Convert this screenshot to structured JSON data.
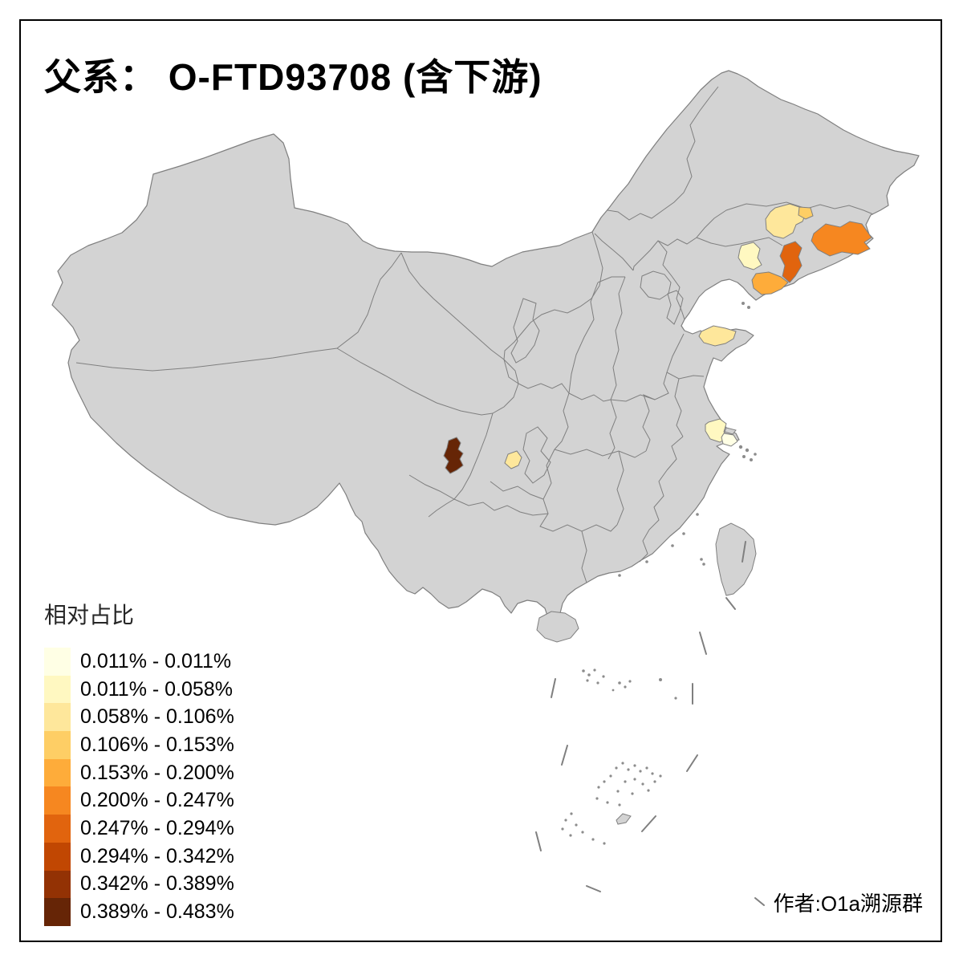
{
  "title": "父系： O-FTD93708 (含下游)",
  "author": "作者:O1a溯源群",
  "legend": {
    "title": "相对占比",
    "classes": [
      {
        "label": "0.011% - 0.011%",
        "color": "#FFFFE5"
      },
      {
        "label": "0.011% - 0.058%",
        "color": "#FFF8C1"
      },
      {
        "label": "0.058% - 0.106%",
        "color": "#FEE79B"
      },
      {
        "label": "0.106% - 0.153%",
        "color": "#FECE65"
      },
      {
        "label": "0.153% - 0.200%",
        "color": "#FEAC3A"
      },
      {
        "label": "0.200% - 0.247%",
        "color": "#F68720"
      },
      {
        "label": "0.247% - 0.294%",
        "color": "#E1640E"
      },
      {
        "label": "0.294% - 0.342%",
        "color": "#C14702"
      },
      {
        "label": "0.342% - 0.389%",
        "color": "#933204"
      },
      {
        "label": "0.389% - 0.483%",
        "color": "#662506"
      }
    ]
  },
  "map": {
    "background": "#FFFFFF",
    "land_color": "#D3D3D3",
    "border_color": "#7F7F7F",
    "frame_color": "#000000",
    "regions": [
      {
        "id": "shanghai",
        "class": 1
      },
      {
        "id": "south-jiangsu",
        "class": 2
      },
      {
        "id": "central-liaoning",
        "class": 2
      },
      {
        "id": "central-jilin",
        "class": 3
      },
      {
        "id": "shandong-peninsula",
        "class": 3
      },
      {
        "id": "south-sichuan",
        "class": 3
      },
      {
        "id": "jilin-city",
        "class": 4
      },
      {
        "id": "dalian",
        "class": 5
      },
      {
        "id": "east-jilin-yanbian",
        "class": 6
      },
      {
        "id": "dandong",
        "class": 7
      },
      {
        "id": "west-sichuan",
        "class": 10
      }
    ]
  }
}
